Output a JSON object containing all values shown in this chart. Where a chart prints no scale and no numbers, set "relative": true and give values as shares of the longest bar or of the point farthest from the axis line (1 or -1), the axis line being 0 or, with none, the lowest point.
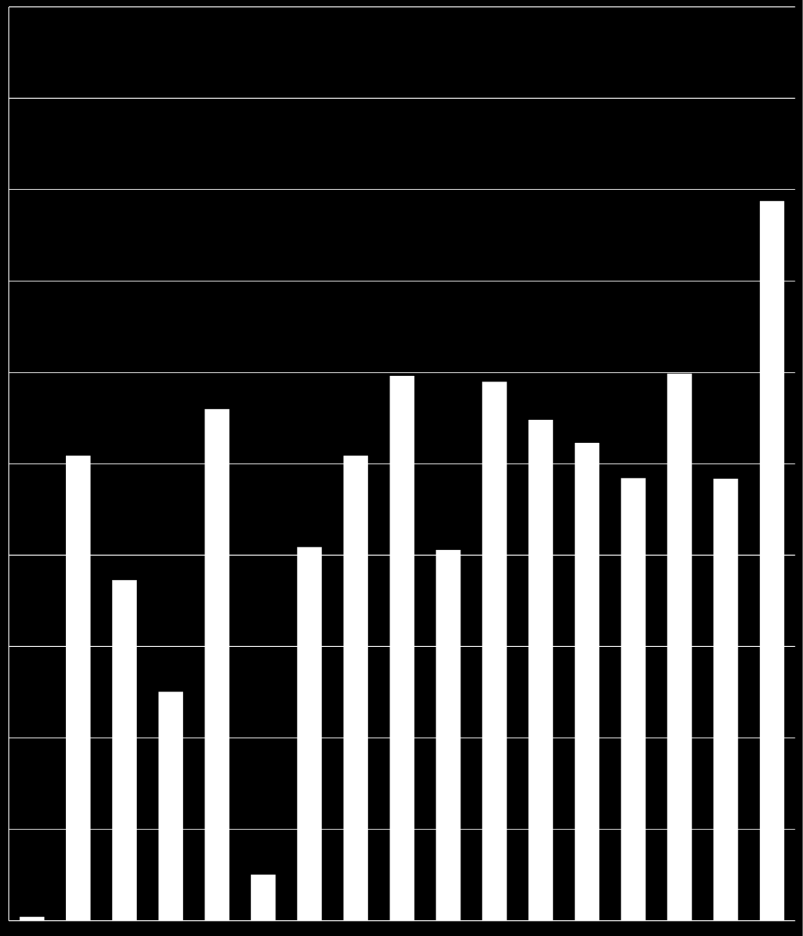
{
  "chart_data": {
    "type": "bar",
    "relative": true,
    "grid": "y",
    "color": "#ffffff",
    "categories": [
      null,
      null,
      null,
      null,
      null,
      null,
      null,
      null,
      null,
      null,
      null,
      null,
      null,
      null,
      null,
      null,
      null
    ],
    "values": [
      0.005,
      0.646,
      0.473,
      0.318,
      0.711,
      0.064,
      0.519,
      0.646,
      0.757,
      0.515,
      0.749,
      0.696,
      0.664,
      0.615,
      0.76,
      0.614,
      1
    ]
  }
}
